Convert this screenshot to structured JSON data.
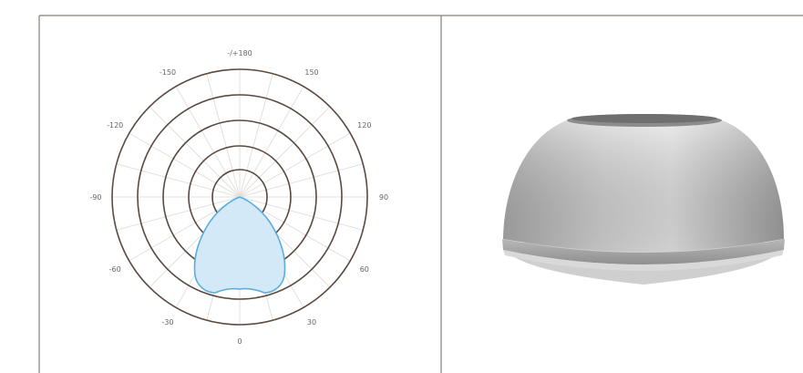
{
  "polar": {
    "angle_labels": [
      {
        "text": "-/+180",
        "angle": 180
      },
      {
        "text": "150",
        "angle": 150
      },
      {
        "text": "120",
        "angle": 120
      },
      {
        "text": "90",
        "angle": 90
      },
      {
        "text": "60",
        "angle": 60
      },
      {
        "text": "30",
        "angle": 30
      },
      {
        "text": "0",
        "angle": 0
      },
      {
        "text": "-30",
        "angle": -30
      },
      {
        "text": "-60",
        "angle": -60
      },
      {
        "text": "-90",
        "angle": -90
      },
      {
        "text": "-120",
        "angle": -120
      },
      {
        "text": "-150",
        "angle": -150
      }
    ],
    "ring_count": 5,
    "curve_color": "#5aaee0",
    "fill_color": "#d4e9f7",
    "ring_color": "#5a4a40"
  },
  "product": {
    "name_icon": "highbay-reflector-dome",
    "color": "#c8c8c8"
  }
}
